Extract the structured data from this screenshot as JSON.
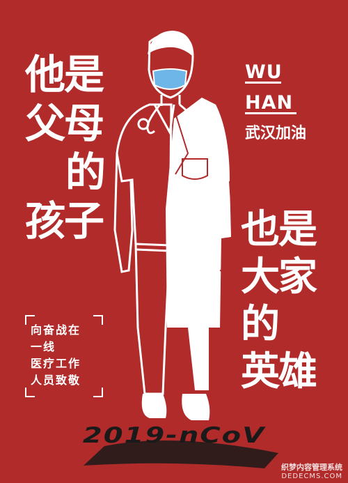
{
  "colors": {
    "background": "#b22b2b",
    "text": "#ffffff",
    "mask": "#6fb6e8",
    "ground_text": "#1a1a1a"
  },
  "left_title": [
    "他是",
    "父母",
    "的",
    "孩子"
  ],
  "right_title": [
    "也是",
    "大家",
    "的",
    "英雄"
  ],
  "wuhan": {
    "line1": "WU",
    "line2": "HAN",
    "cheer": "武汉加油"
  },
  "box_text": [
    "向奋战在",
    "一线",
    "医疗工作",
    "人员致敬"
  ],
  "ground_text": "2019-nCoV",
  "watermark": {
    "line1": "织梦内容管理系统",
    "line2": "DEDECMS.COM"
  }
}
